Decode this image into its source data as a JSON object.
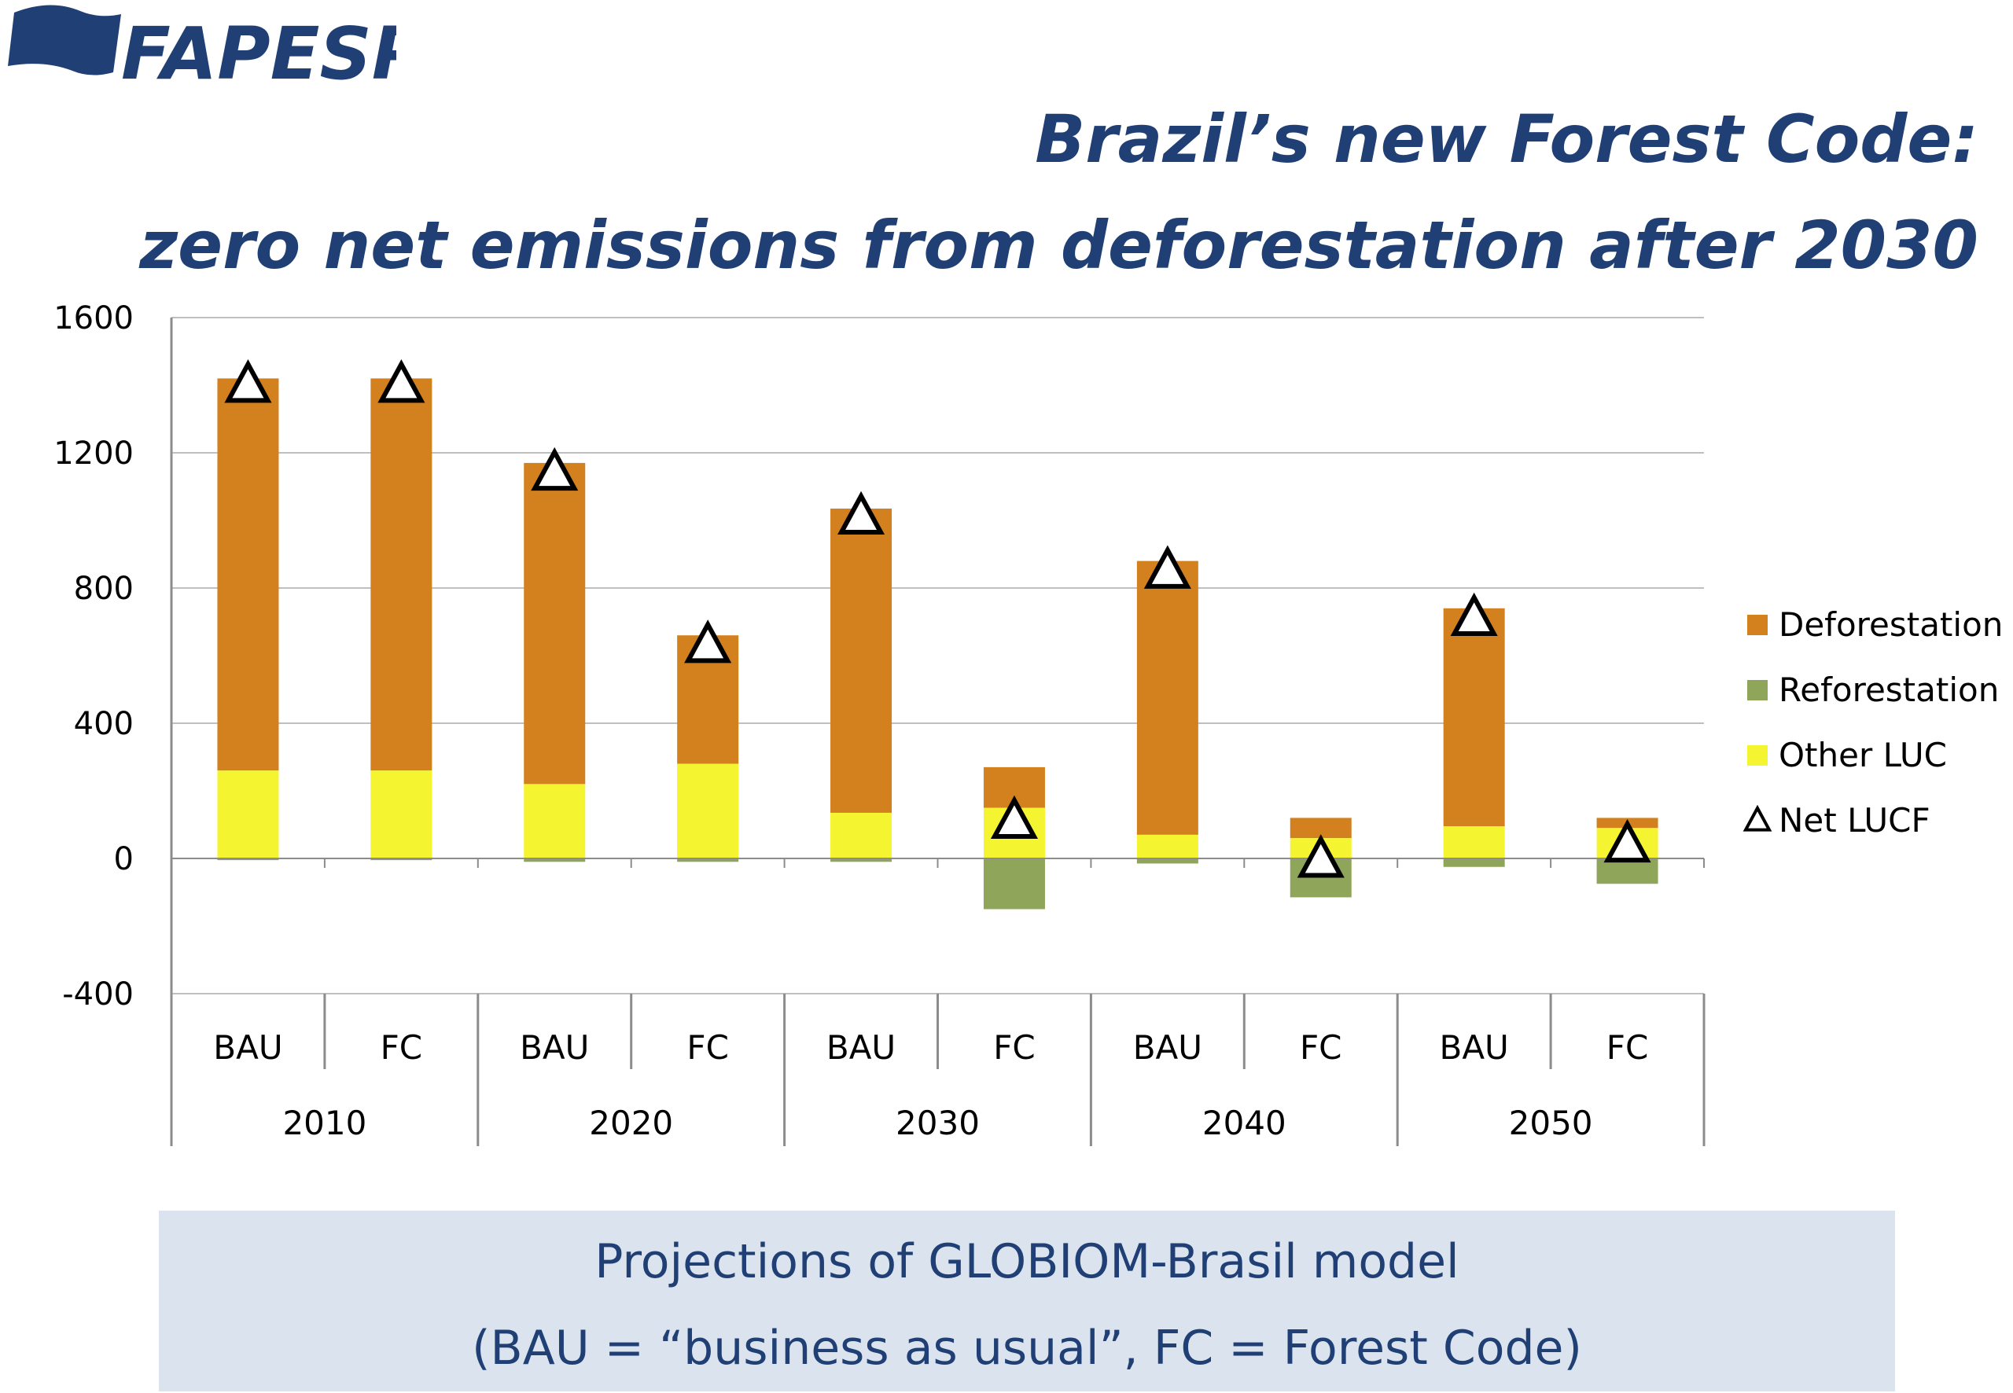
{
  "logo": {
    "text": "FAPESP",
    "color": "#1f3f75"
  },
  "title": {
    "line1": "Brazil’s new Forest Code:",
    "line2": "zero net emissions from deforestation after 2030",
    "color": "#1f3f75"
  },
  "caption": {
    "line1": "Projections of GLOBIOM-Brasil model",
    "line2": "(BAU = “business as usual”, FC = Forest Code)",
    "background": "#dbe4ee"
  },
  "chart_data": {
    "type": "bar",
    "stacked": true,
    "title": "",
    "xlabel": "",
    "ylabel": "",
    "ylim": [
      -400,
      1600
    ],
    "yticks": [
      "1600",
      "1200",
      "800",
      "400",
      "0",
      "-400"
    ],
    "grid": true,
    "legend_position": "right",
    "groups": [
      "2010",
      "2020",
      "2030",
      "2040",
      "2050"
    ],
    "categories": [
      "BAU",
      "FC",
      "BAU",
      "FC",
      "BAU",
      "FC",
      "BAU",
      "FC",
      "BAU",
      "FC"
    ],
    "series": [
      {
        "name": "Deforestation",
        "color": "#d3801e",
        "values": [
          1160,
          1160,
          950,
          380,
          900,
          120,
          810,
          60,
          645,
          30
        ]
      },
      {
        "name": "Reforestation",
        "color": "#8ea55a",
        "values": [
          -5,
          -5,
          -10,
          -10,
          -10,
          -150,
          -15,
          -115,
          -25,
          -75
        ]
      },
      {
        "name": "Other LUC",
        "color": "#f5f431",
        "values": [
          260,
          260,
          220,
          280,
          135,
          150,
          70,
          60,
          95,
          90
        ]
      }
    ],
    "net": {
      "name": "Net LUCF",
      "marker": "triangle",
      "values": [
        1400,
        1400,
        1140,
        630,
        1010,
        110,
        850,
        -5,
        710,
        40
      ]
    }
  }
}
